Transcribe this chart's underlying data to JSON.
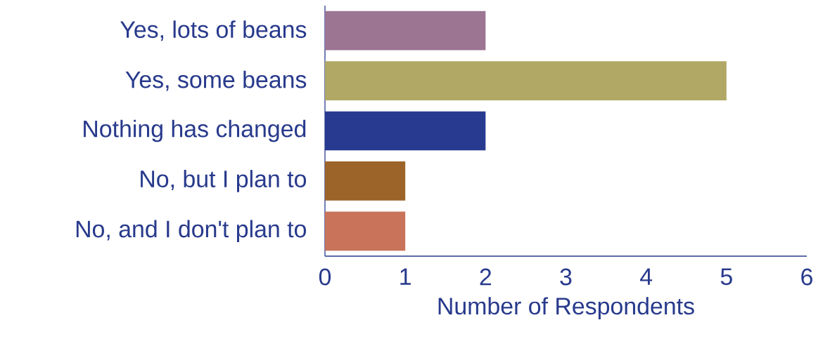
{
  "chart_data": {
    "type": "bar",
    "orientation": "horizontal",
    "categories": [
      "Yes, lots of beans",
      "Yes, some beans",
      "Nothing has changed",
      "No, but I plan to",
      "No, and I don't plan to"
    ],
    "values": [
      2,
      5,
      2,
      1,
      1
    ],
    "colors": [
      "#9c7593",
      "#b1a866",
      "#283a90",
      "#9c6428",
      "#c8735a"
    ],
    "xlim": [
      0,
      6
    ],
    "xticks": [
      0,
      1,
      2,
      3,
      4,
      5,
      6
    ],
    "xlabel": "Number of Respondents"
  }
}
